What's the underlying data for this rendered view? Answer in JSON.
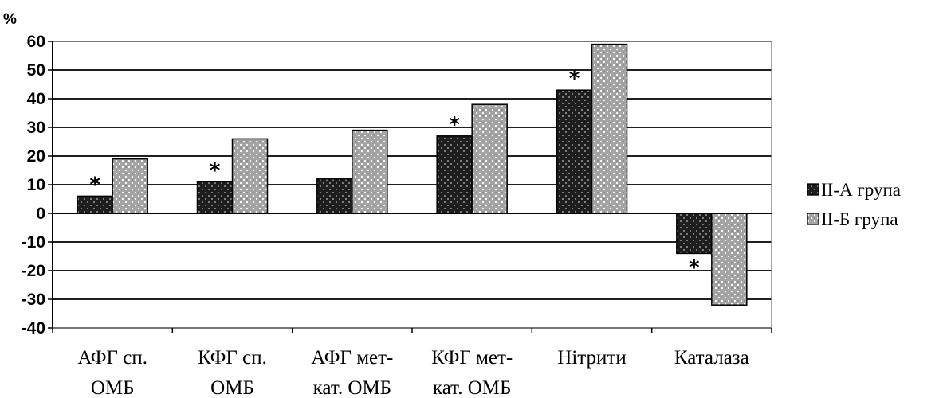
{
  "chart_data": {
    "type": "bar",
    "ylabel": "%",
    "xlabel": "",
    "ylim": [
      -40,
      60
    ],
    "yticks": [
      -40,
      -30,
      -20,
      -10,
      0,
      10,
      20,
      30,
      40,
      50,
      60
    ],
    "grid": true,
    "legend_position": "right",
    "categories": [
      [
        "АФГ сп.",
        "ОМБ"
      ],
      [
        "КФГ сп.",
        "ОМБ"
      ],
      [
        "АФГ мет-",
        "кат. ОМБ"
      ],
      [
        "КФГ мет-",
        "кат. ОМБ"
      ],
      [
        "Нітрити"
      ],
      [
        "Каталаза"
      ]
    ],
    "series": [
      {
        "name": "ІІ-А група",
        "color": "#1a1a1a",
        "pattern": "dark-dotted",
        "values": [
          6,
          11,
          12,
          27,
          43,
          -14
        ]
      },
      {
        "name": "ІІ-Б група",
        "color": "#a8a8a8",
        "pattern": "light-dotted",
        "values": [
          19,
          26,
          29,
          38,
          59,
          -32
        ]
      }
    ],
    "annotations": [
      {
        "category_index": 0,
        "series_index": 0,
        "text": "*"
      },
      {
        "category_index": 1,
        "series_index": 0,
        "text": "*"
      },
      {
        "category_index": 3,
        "series_index": 0,
        "text": "*"
      },
      {
        "category_index": 4,
        "series_index": 0,
        "text": "*"
      },
      {
        "category_index": 5,
        "series_index": 0,
        "text": "*"
      }
    ]
  }
}
